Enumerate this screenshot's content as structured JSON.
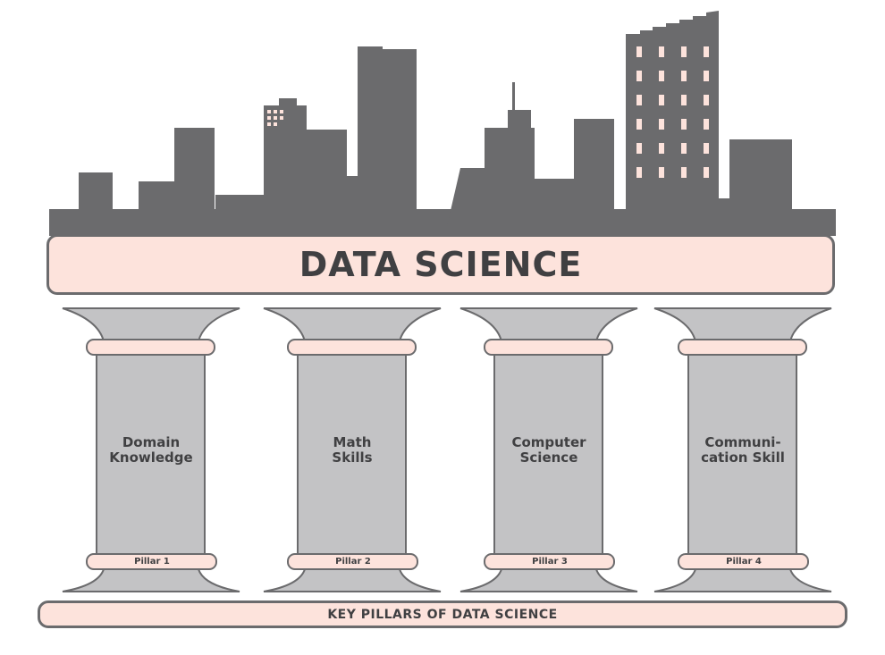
{
  "title": "DATA SCIENCE",
  "footer": "KEY PILLARS OF DATA SCIENCE",
  "pillars": [
    {
      "label": "Domain\nKnowledge",
      "number": "Pillar 1"
    },
    {
      "label": "Math\nSkills",
      "number": "Pillar 2"
    },
    {
      "label": "Computer\nScience",
      "number": "Pillar 3"
    },
    {
      "label": "Communi-\ncation Skill",
      "number": "Pillar 4"
    }
  ],
  "colors": {
    "skyline": "#6b6b6d",
    "pillar": "#c3c3c5",
    "accent": "#fde3dc",
    "text": "#404042"
  }
}
